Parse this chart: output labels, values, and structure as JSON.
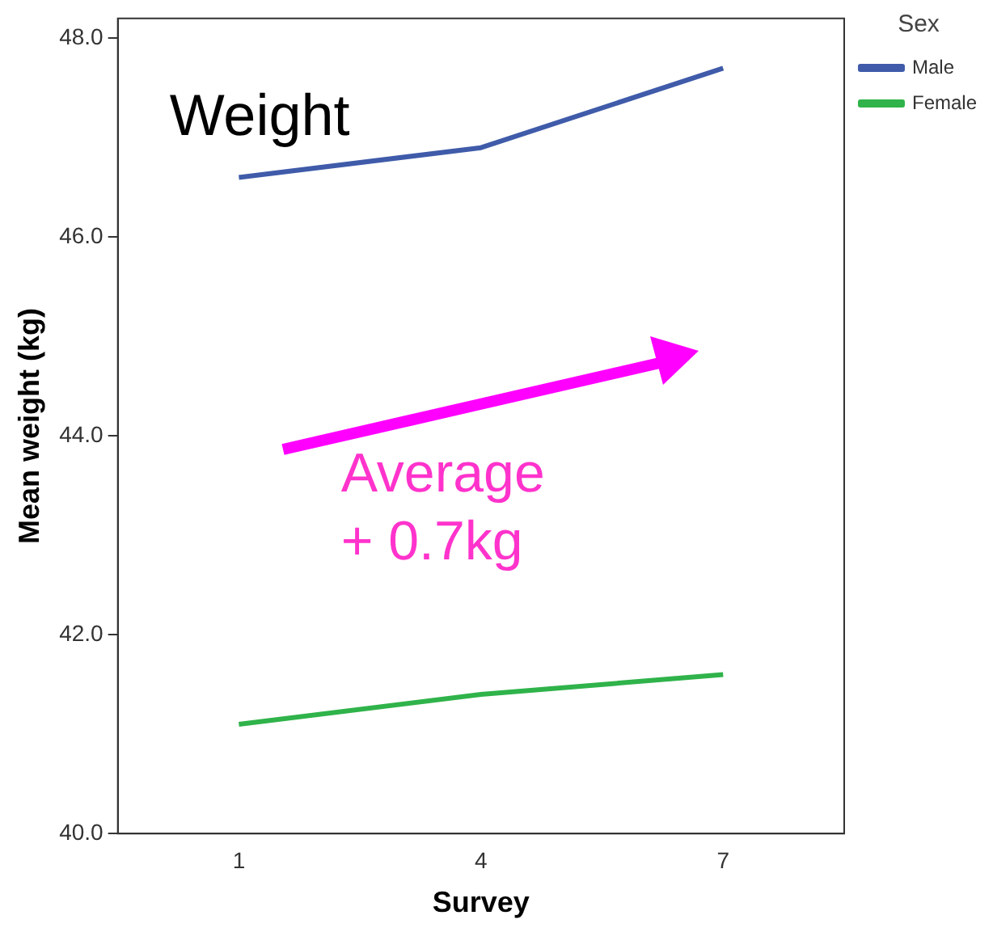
{
  "chart_data": {
    "type": "line",
    "title": "Weight",
    "xlabel": "Survey",
    "ylabel": "Mean weight (kg)",
    "legend_title": "Sex",
    "categories": [
      "1",
      "4",
      "7"
    ],
    "series": [
      {
        "name": "Male",
        "color": "#3f5ba9",
        "values": [
          46.6,
          46.9,
          47.7
        ]
      },
      {
        "name": "Female",
        "color": "#2fb34a",
        "values": [
          41.1,
          41.4,
          41.6
        ]
      }
    ],
    "ylim": [
      40,
      48.2
    ],
    "yticks": [
      {
        "value": 40,
        "label": "40.0"
      },
      {
        "value": 42,
        "label": "42.0"
      },
      {
        "value": 44,
        "label": "44.0"
      },
      {
        "value": 46,
        "label": "46.0"
      },
      {
        "value": 48,
        "label": "48.0"
      }
    ],
    "annotations": [
      "Average\n+ 0.7kg"
    ],
    "grid": false,
    "legend": "top right",
    "marker": "none",
    "line_style": "solid"
  }
}
